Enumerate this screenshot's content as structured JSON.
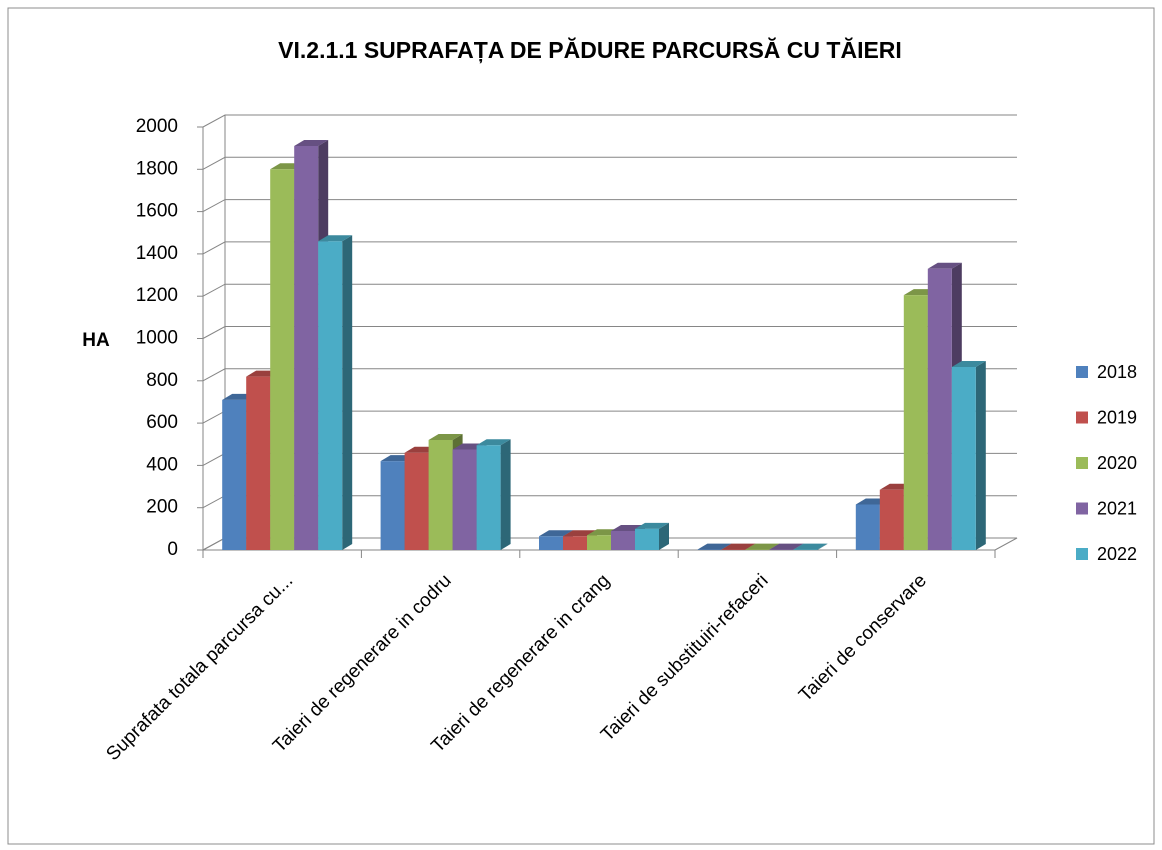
{
  "chart_data": {
    "type": "bar3d",
    "title": "VI.2.1.1 SUPRAFAȚA DE PĂDURE PARCURSĂ CU TĂIERI",
    "y_label": "HA",
    "categories": [
      "Suprafata totala parcursa cu...",
      "Taieri de regenerare in codru",
      "Taieri de regenerare in crang",
      "Taieri de substituiri-refaceri",
      "Taieri de conservare"
    ],
    "series": [
      {
        "name": "2018",
        "color": "#4f81bd",
        "values": [
          710,
          420,
          65,
          2,
          215
        ]
      },
      {
        "name": "2019",
        "color": "#c0504d",
        "values": [
          820,
          460,
          65,
          2,
          285
        ]
      },
      {
        "name": "2020",
        "color": "#9bbb59",
        "values": [
          1800,
          520,
          70,
          2,
          1205
        ]
      },
      {
        "name": "2021",
        "color": "#8064a2",
        "values": [
          1910,
          475,
          90,
          2,
          1330
        ]
      },
      {
        "name": "2022",
        "color": "#4bacc6",
        "values": [
          1460,
          495,
          100,
          2,
          865
        ]
      }
    ],
    "ylim": [
      0,
      2000
    ],
    "yticks": [
      0,
      200,
      400,
      600,
      800,
      1000,
      1200,
      1400,
      1600,
      1800,
      2000
    ],
    "grid": true,
    "legend": "right"
  }
}
